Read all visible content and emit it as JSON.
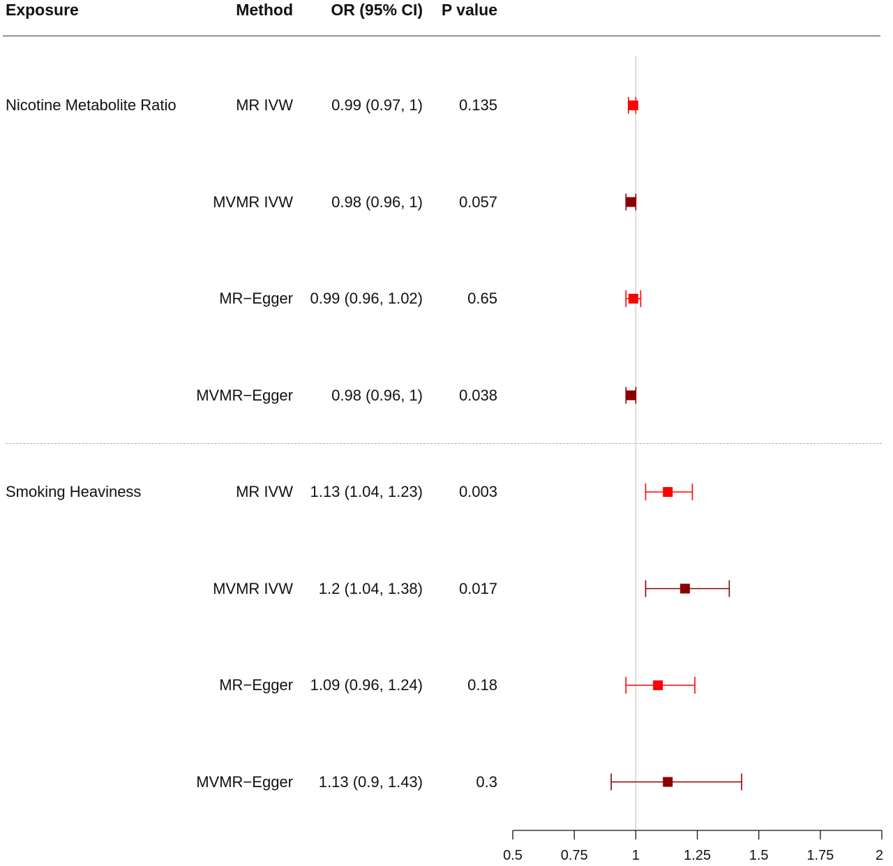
{
  "headers": {
    "exposure": "Exposure",
    "method": "Method",
    "or_ci": "OR (95% CI)",
    "p_value": "P value"
  },
  "rows": [
    {
      "exposure": "Nicotine Metabolite Ratio",
      "method": "MR IVW",
      "or_ci": "0.99 (0.97, 1)",
      "p": "0.135"
    },
    {
      "exposure": "",
      "method": "MVMR IVW",
      "or_ci": "0.98 (0.96, 1)",
      "p": "0.057"
    },
    {
      "exposure": "",
      "method": "MR−Egger",
      "or_ci": "0.99 (0.96, 1.02)",
      "p": "0.65"
    },
    {
      "exposure": "",
      "method": "MVMR−Egger",
      "or_ci": "0.98 (0.96, 1)",
      "p": "0.038"
    },
    {
      "exposure": "Smoking Heaviness",
      "method": "MR IVW",
      "or_ci": "1.13 (1.04, 1.23)",
      "p": "0.003"
    },
    {
      "exposure": "",
      "method": "MVMR IVW",
      "or_ci": "1.2 (1.04, 1.38)",
      "p": "0.017"
    },
    {
      "exposure": "",
      "method": "MR−Egger",
      "or_ci": "1.09 (0.96, 1.24)",
      "p": "0.18"
    },
    {
      "exposure": "",
      "method": "MVMR−Egger",
      "or_ci": "1.13 (0.9, 1.43)",
      "p": "0.3"
    }
  ],
  "chart_data": {
    "type": "forest",
    "x_ticks": [
      "0.5",
      "0.75",
      "1",
      "1.25",
      "1.5",
      "1.75",
      "2"
    ],
    "xlim": [
      0.5,
      2
    ],
    "reference_line": 1,
    "colors": {
      "mr": "#ff0000",
      "mvmr": "#8b0000",
      "reference": "#d3d3d3",
      "divider": "#aaaaaa",
      "axis": "#111111"
    },
    "points": [
      {
        "group": "Nicotine Metabolite Ratio",
        "method": "MR IVW",
        "or": 0.99,
        "lower": 0.97,
        "upper": 1.0,
        "style": "mr"
      },
      {
        "group": "Nicotine Metabolite Ratio",
        "method": "MVMR IVW",
        "or": 0.98,
        "lower": 0.96,
        "upper": 1.0,
        "style": "mvmr"
      },
      {
        "group": "Nicotine Metabolite Ratio",
        "method": "MR−Egger",
        "or": 0.99,
        "lower": 0.96,
        "upper": 1.02,
        "style": "mr"
      },
      {
        "group": "Nicotine Metabolite Ratio",
        "method": "MVMR−Egger",
        "or": 0.98,
        "lower": 0.96,
        "upper": 1.0,
        "style": "mvmr"
      },
      {
        "group": "Smoking Heaviness",
        "method": "MR IVW",
        "or": 1.13,
        "lower": 1.04,
        "upper": 1.23,
        "style": "mr"
      },
      {
        "group": "Smoking Heaviness",
        "method": "MVMR IVW",
        "or": 1.2,
        "lower": 1.04,
        "upper": 1.38,
        "style": "mvmr"
      },
      {
        "group": "Smoking Heaviness",
        "method": "MR−Egger",
        "or": 1.09,
        "lower": 0.96,
        "upper": 1.24,
        "style": "mr"
      },
      {
        "group": "Smoking Heaviness",
        "method": "MVMR−Egger",
        "or": 1.13,
        "lower": 0.9,
        "upper": 1.43,
        "style": "mvmr"
      }
    ]
  }
}
